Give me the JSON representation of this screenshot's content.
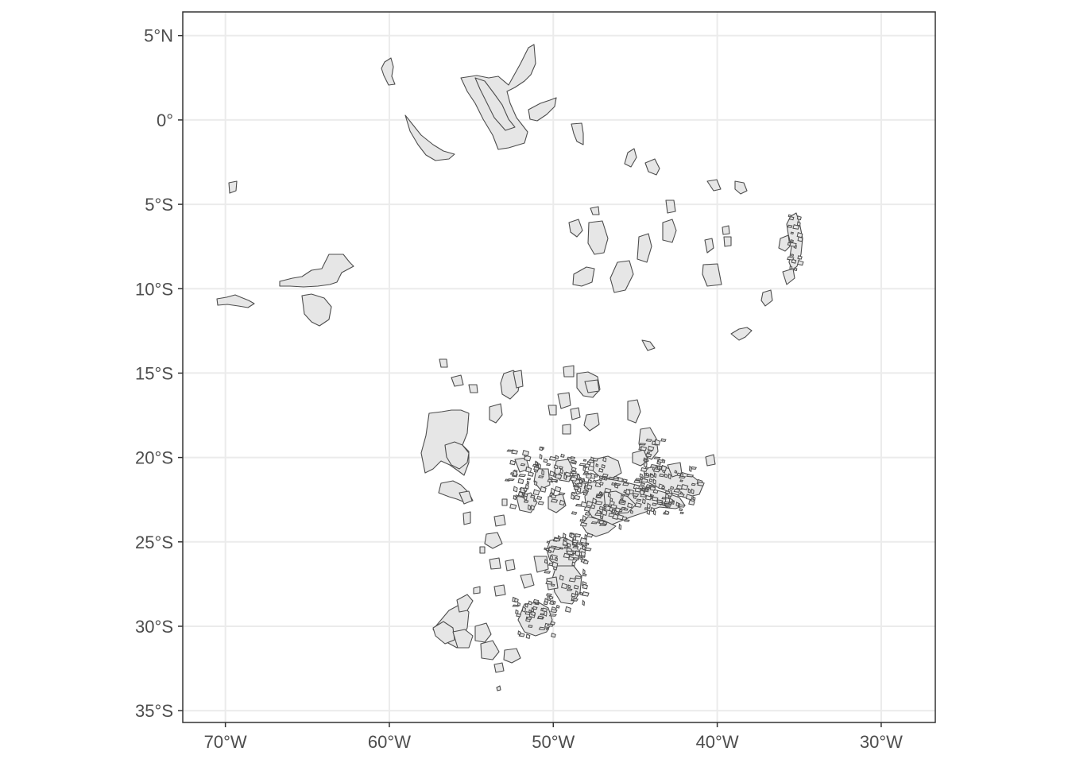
{
  "map": {
    "x_axis": {
      "ticks": [
        {
          "value": -70,
          "label": "70°W"
        },
        {
          "value": -60,
          "label": "60°W"
        },
        {
          "value": -50,
          "label": "50°W"
        },
        {
          "value": -40,
          "label": "40°W"
        },
        {
          "value": -30,
          "label": "30°W"
        }
      ],
      "range": [
        -72.6,
        -26.7
      ]
    },
    "y_axis": {
      "ticks": [
        {
          "value": 5,
          "label": "5°N"
        },
        {
          "value": 0,
          "label": "0°"
        },
        {
          "value": -5,
          "label": "5°S"
        },
        {
          "value": -10,
          "label": "10°S"
        },
        {
          "value": -15,
          "label": "15°S"
        },
        {
          "value": -20,
          "label": "20°S"
        },
        {
          "value": -25,
          "label": "25°S"
        },
        {
          "value": -30,
          "label": "30°S"
        },
        {
          "value": -35,
          "label": "35°S"
        }
      ],
      "range": [
        -35.7,
        6.4
      ]
    },
    "grid": true,
    "fill_color": "#e6e6e6",
    "border_color": "#4d4d4d",
    "background": "#ffffff"
  }
}
